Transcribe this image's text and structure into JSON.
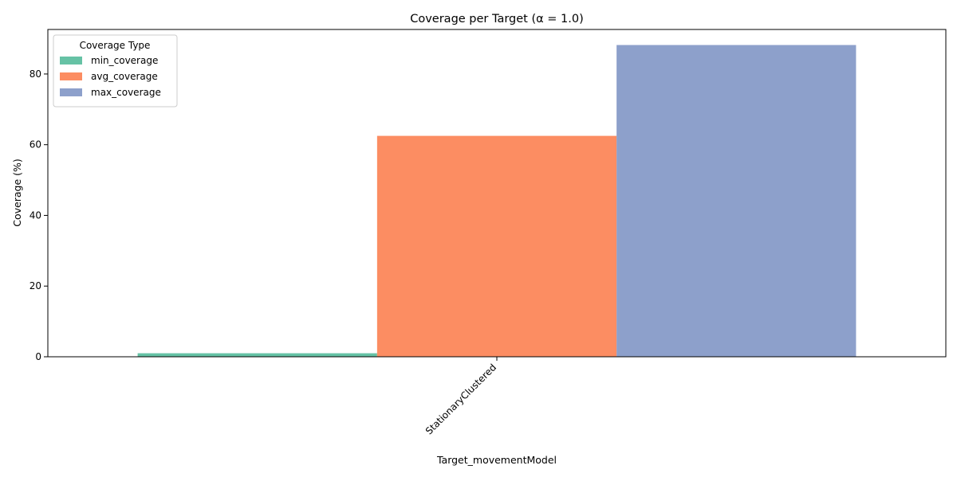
{
  "chart_data": {
    "type": "bar",
    "title": "Coverage per Target (α = 1.0)",
    "xlabel": "Target_movementModel",
    "ylabel": "Coverage (%)",
    "categories": [
      "StationaryClustered"
    ],
    "series": [
      {
        "name": "min_coverage",
        "values": [
          1.0
        ],
        "color": "#66c2a5"
      },
      {
        "name": "avg_coverage",
        "values": [
          62.5
        ],
        "color": "#fc8d62"
      },
      {
        "name": "max_coverage",
        "values": [
          88.2
        ],
        "color": "#8da0cb"
      }
    ],
    "ylim": [
      0,
      92.6
    ],
    "yticks": [
      0,
      20,
      40,
      60,
      80
    ],
    "grid": false,
    "legend": {
      "title": "Coverage Type",
      "placement": "top-left"
    }
  }
}
